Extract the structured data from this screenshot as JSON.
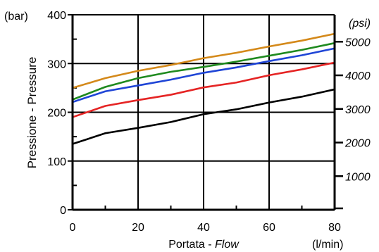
{
  "chart_data": {
    "type": "line",
    "xlabel": "Portata - ",
    "xlabel_italic": "Flow",
    "xunit": "(l/min)",
    "ylabel": "Pressione - Pressure",
    "yunit_left": "(bar)",
    "yunit_right": "(psi)",
    "xlim": [
      0,
      80
    ],
    "ylim": [
      0,
      400
    ],
    "x_ticks": [
      0,
      20,
      40,
      60,
      80
    ],
    "y_ticks": [
      0,
      100,
      200,
      300,
      400
    ],
    "psi_ticks": [
      1000,
      2000,
      3000,
      4000,
      5000
    ],
    "grid": true,
    "x": [
      0,
      10,
      20,
      30,
      40,
      50,
      60,
      70,
      80
    ],
    "series": [
      {
        "color": "#d4891a",
        "values": [
          250,
          270,
          285,
          297,
          311,
          322,
          335,
          347,
          361
        ]
      },
      {
        "color": "#1f8a1f",
        "values": [
          226,
          252,
          270,
          283,
          293,
          304,
          316,
          328,
          342
        ]
      },
      {
        "color": "#1f45d6",
        "values": [
          221,
          243,
          255,
          267,
          281,
          292,
          305,
          317,
          331
        ]
      },
      {
        "color": "#e52424",
        "values": [
          190,
          213,
          225,
          236,
          251,
          261,
          276,
          288,
          302
        ]
      },
      {
        "color": "#000000",
        "values": [
          135,
          157,
          168,
          180,
          196,
          206,
          220,
          232,
          247
        ]
      }
    ]
  }
}
